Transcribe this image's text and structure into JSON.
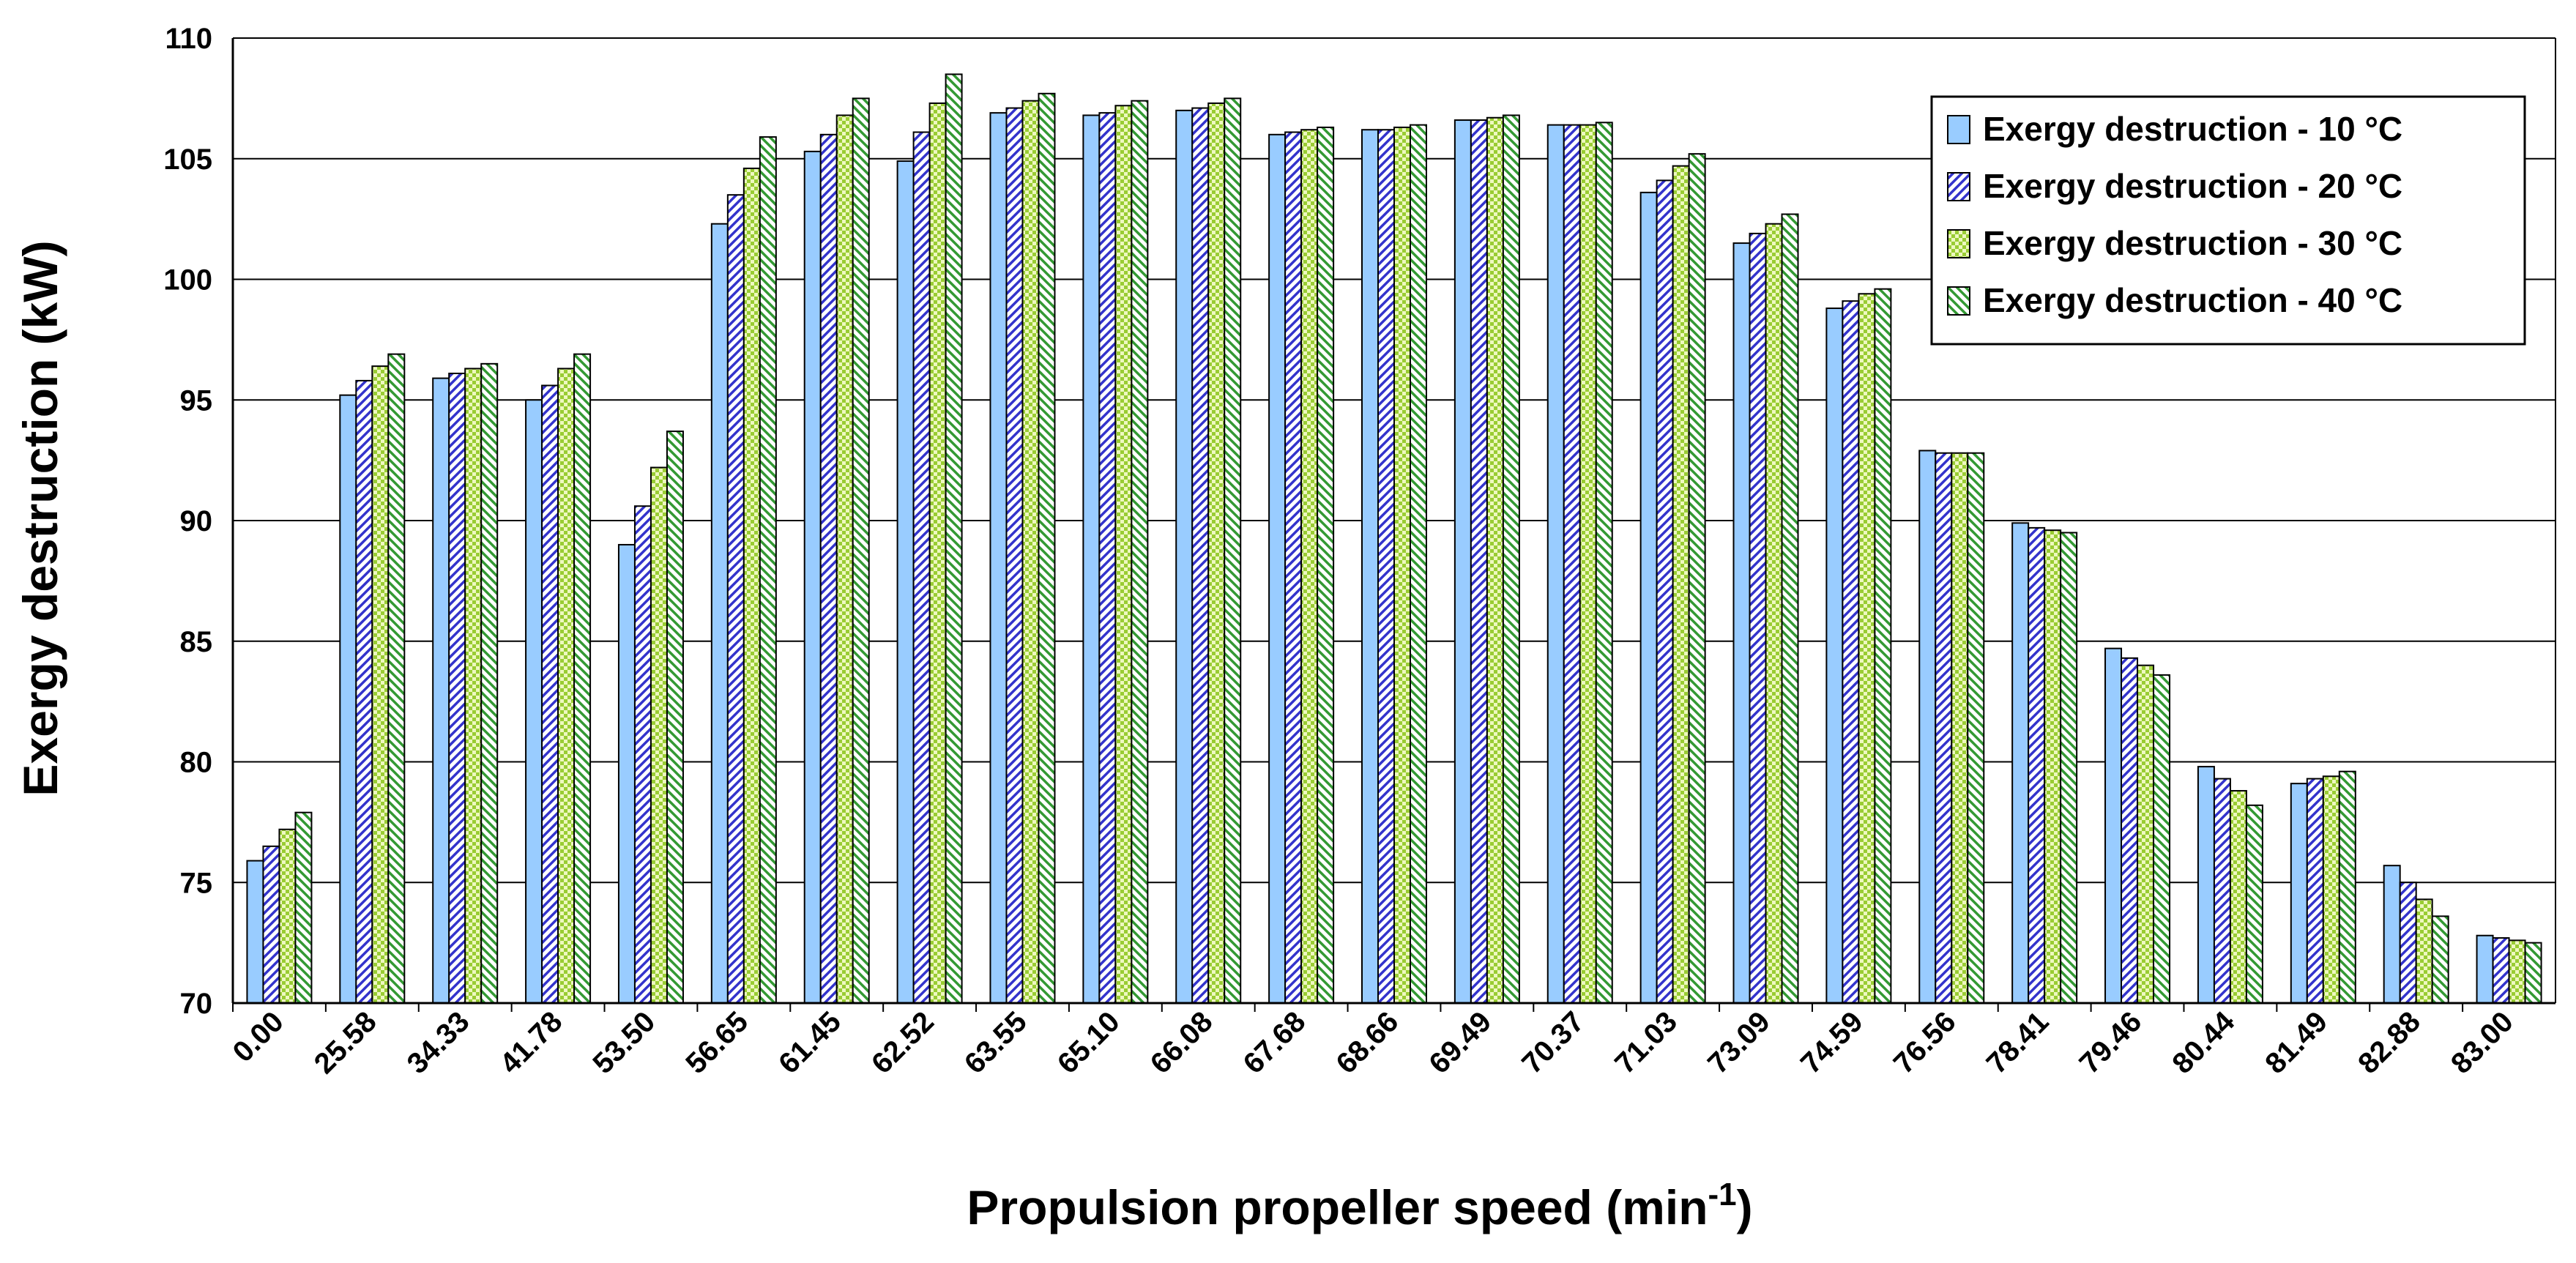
{
  "chart_data": {
    "type": "bar",
    "title": "",
    "xlabel": "Propulsion propeller speed (min",
    "xlabel_sup": "-1",
    "xlabel_end": ")",
    "ylabel": "Exergy destruction (kW)",
    "ylim": [
      70,
      110
    ],
    "yticks": [
      70,
      75,
      80,
      85,
      90,
      95,
      100,
      105,
      110
    ],
    "grid": "horizontal",
    "legend_position": "top-right",
    "categories": [
      "0.00",
      "25.58",
      "34.33",
      "41.78",
      "53.50",
      "56.65",
      "61.45",
      "62.52",
      "63.55",
      "65.10",
      "66.08",
      "67.68",
      "68.66",
      "69.49",
      "70.37",
      "71.03",
      "73.09",
      "74.59",
      "76.56",
      "78.41",
      "79.46",
      "80.44",
      "81.49",
      "82.88",
      "83.00"
    ],
    "series": [
      {
        "name": "Exergy destruction - 10 °C",
        "color": "#99ccff",
        "pattern": "solid",
        "values": [
          75.9,
          95.2,
          95.9,
          95.0,
          89.0,
          102.3,
          105.3,
          104.9,
          106.9,
          106.8,
          107.0,
          106.0,
          106.2,
          106.6,
          106.4,
          103.6,
          101.5,
          98.8,
          92.9,
          89.9,
          84.7,
          79.8,
          79.1,
          75.7,
          72.8
        ]
      },
      {
        "name": "Exergy destruction - 20 °C",
        "color": "#3333cc",
        "pattern": "diag-right",
        "values": [
          76.5,
          95.8,
          96.1,
          95.6,
          90.6,
          103.5,
          106.0,
          106.1,
          107.1,
          106.9,
          107.1,
          106.1,
          106.2,
          106.6,
          106.4,
          104.1,
          101.9,
          99.1,
          92.8,
          89.7,
          84.3,
          79.3,
          79.3,
          75.0,
          72.7
        ]
      },
      {
        "name": "Exergy destruction - 30 °C",
        "color": "#99cc33",
        "pattern": "checker",
        "values": [
          77.2,
          96.4,
          96.3,
          96.3,
          92.2,
          104.6,
          106.8,
          107.3,
          107.4,
          107.2,
          107.3,
          106.2,
          106.3,
          106.7,
          106.4,
          104.7,
          102.3,
          99.4,
          92.8,
          89.6,
          84.0,
          78.8,
          79.4,
          74.3,
          72.6
        ]
      },
      {
        "name": "Exergy destruction - 40 °C",
        "color": "#339933",
        "pattern": "diag-left",
        "values": [
          77.9,
          96.9,
          96.5,
          96.9,
          93.7,
          105.9,
          107.5,
          108.5,
          107.7,
          107.4,
          107.5,
          106.3,
          106.4,
          106.8,
          106.5,
          105.2,
          102.7,
          99.6,
          92.8,
          89.5,
          83.6,
          78.2,
          79.6,
          73.6,
          72.5
        ]
      }
    ]
  }
}
